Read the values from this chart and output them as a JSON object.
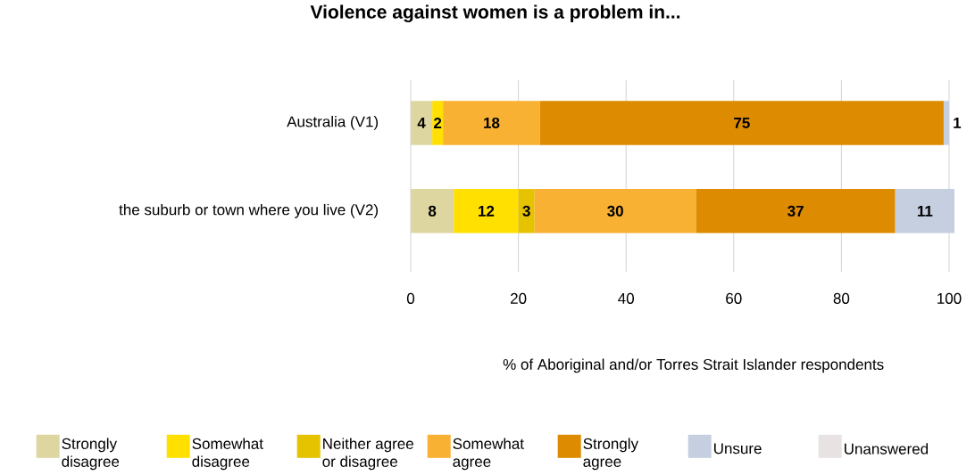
{
  "chart_data": {
    "type": "bar",
    "orientation": "horizontal",
    "stacked": true,
    "data_labels": true,
    "title": "Violence against women is a problem in...",
    "xlabel": "% of Aboriginal and/or Torres Strait Islander respondents",
    "categories": [
      "Australia (V1)",
      "the suburb or town where you live (V2)"
    ],
    "xlim": [
      0,
      101
    ],
    "xticks": [
      0,
      20,
      40,
      60,
      80,
      100
    ],
    "grid": "x",
    "legend": "bottom",
    "series": [
      {
        "name": "Strongly disagree",
        "color": "#ddd6a0",
        "values": [
          4,
          8
        ]
      },
      {
        "name": "Somewhat disagree",
        "color": "#ffe000",
        "values": [
          2,
          12
        ]
      },
      {
        "name": "Neither agree or disagree",
        "color": "#e5c300",
        "values": [
          null,
          3
        ]
      },
      {
        "name": "Somewhat agree",
        "color": "#f8b133",
        "values": [
          18,
          30
        ]
      },
      {
        "name": "Strongly agree",
        "color": "#dd8b00",
        "values": [
          75,
          37
        ]
      },
      {
        "name": "Unsure",
        "color": "#c5cfe0",
        "values": [
          1,
          11
        ]
      },
      {
        "name": "Unanswered",
        "color": "#e8e2e2",
        "values": [
          null,
          null
        ]
      }
    ]
  }
}
